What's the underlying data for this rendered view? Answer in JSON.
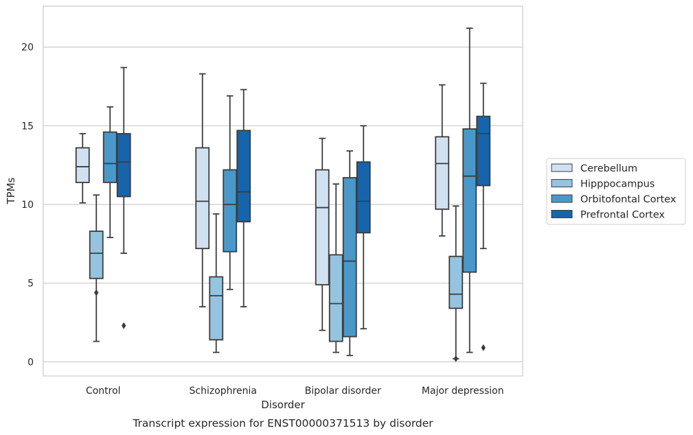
{
  "chart_data": {
    "type": "boxplot",
    "caption": "Transcript expression for ENST00000371513 by disorder",
    "xlabel": "Disorder",
    "ylabel": "TPMs",
    "ylim": [
      -0.9,
      22.6
    ],
    "yticks": [
      0,
      5,
      10,
      15,
      20
    ],
    "grid": "horizontal",
    "legend_position": "right",
    "categories": [
      "Control",
      "Schizophrenia",
      "Bipolar disorder",
      "Major depression"
    ],
    "series": [
      {
        "name": "Cerebellum",
        "color": "#d0e1f2",
        "boxes": [
          {
            "whislo": 10.1,
            "q1": 11.4,
            "med": 12.4,
            "q3": 13.6,
            "whishi": 14.5,
            "fliers": []
          },
          {
            "whislo": 3.5,
            "q1": 7.2,
            "med": 10.2,
            "q3": 13.6,
            "whishi": 18.3,
            "fliers": []
          },
          {
            "whislo": 2.0,
            "q1": 4.9,
            "med": 9.8,
            "q3": 12.2,
            "whishi": 14.2,
            "fliers": []
          },
          {
            "whislo": 8.0,
            "q1": 9.7,
            "med": 12.6,
            "q3": 14.3,
            "whishi": 17.6,
            "fliers": []
          }
        ]
      },
      {
        "name": "Hipppocampus",
        "color": "#94c4df",
        "boxes": [
          {
            "whislo": 1.3,
            "q1": 5.3,
            "med": 6.9,
            "q3": 8.3,
            "whishi": 10.6,
            "fliers": [
              4.4
            ]
          },
          {
            "whislo": 0.6,
            "q1": 1.4,
            "med": 4.2,
            "q3": 5.4,
            "whishi": 9.4,
            "fliers": []
          },
          {
            "whislo": 0.6,
            "q1": 1.3,
            "med": 3.7,
            "q3": 6.8,
            "whishi": 11.3,
            "fliers": []
          },
          {
            "whislo": 0.2,
            "q1": 3.4,
            "med": 4.3,
            "q3": 6.7,
            "whishi": 9.9,
            "fliers": [
              0.2
            ]
          }
        ]
      },
      {
        "name": "Orbitofontal Cortex",
        "color": "#4a98c9",
        "boxes": [
          {
            "whislo": 7.9,
            "q1": 11.4,
            "med": 12.6,
            "q3": 14.6,
            "whishi": 16.2,
            "fliers": []
          },
          {
            "whislo": 4.6,
            "q1": 7.0,
            "med": 10.0,
            "q3": 12.2,
            "whishi": 16.9,
            "fliers": []
          },
          {
            "whislo": 0.4,
            "q1": 1.6,
            "med": 6.4,
            "q3": 11.7,
            "whishi": 13.4,
            "fliers": []
          },
          {
            "whislo": 0.6,
            "q1": 5.7,
            "med": 11.8,
            "q3": 14.8,
            "whishi": 21.2,
            "fliers": []
          }
        ]
      },
      {
        "name": "Prefrontal Cortex",
        "color": "#1764ab",
        "boxes": [
          {
            "whislo": 6.9,
            "q1": 10.5,
            "med": 12.7,
            "q3": 14.5,
            "whishi": 18.7,
            "fliers": [
              2.3
            ]
          },
          {
            "whislo": 3.5,
            "q1": 8.9,
            "med": 10.8,
            "q3": 14.7,
            "whishi": 17.3,
            "fliers": []
          },
          {
            "whislo": 2.1,
            "q1": 8.2,
            "med": 10.2,
            "q3": 12.7,
            "whishi": 15.0,
            "fliers": []
          },
          {
            "whislo": 7.2,
            "q1": 11.2,
            "med": 14.5,
            "q3": 15.6,
            "whishi": 17.7,
            "fliers": [
              0.9
            ]
          }
        ]
      }
    ]
  }
}
